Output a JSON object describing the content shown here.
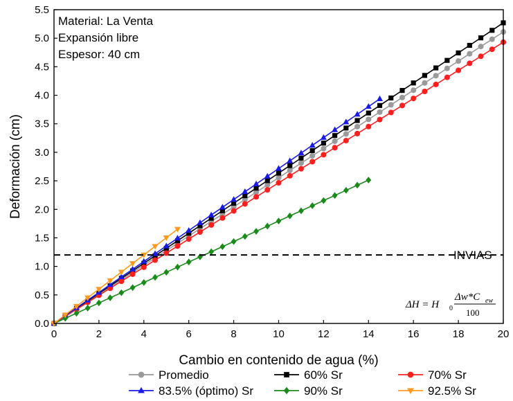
{
  "chart_data": {
    "type": "line",
    "xlabel": "Cambio en contenido de agua (%)",
    "ylabel": "Deformación (cm)",
    "xlim": [
      0,
      20
    ],
    "ylim": [
      0,
      5.5
    ],
    "x_ticks": [
      0,
      2,
      4,
      6,
      8,
      10,
      12,
      14,
      16,
      18,
      20
    ],
    "y_ticks": [
      0.0,
      0.5,
      1.0,
      1.5,
      2.0,
      2.5,
      3.0,
      3.5,
      4.0,
      4.5,
      5.0,
      5.5
    ],
    "grid": false,
    "annotations": [
      "Material: La Venta",
      "Expansión libre",
      "Espesor: 40 cm"
    ],
    "reference_line": {
      "y": 1.2,
      "label": "INVIAS",
      "style": "dashed"
    },
    "formula": {
      "lhs": "ΔH = H",
      "sub": "0",
      "numerator": "Δw*C",
      "num_sub": "ew",
      "denominator": "100"
    },
    "series": [
      {
        "name": "Promedio",
        "color": "#9a9a9a",
        "marker": "circle",
        "x_max": 20,
        "slope": 0.2555,
        "step": 0.5
      },
      {
        "name": "60% Sr",
        "color": "#000000",
        "marker": "square",
        "x_max": 20,
        "slope": 0.2635,
        "step": 0.5
      },
      {
        "name": "70% Sr",
        "color": "#ff1f1f",
        "marker": "circle",
        "x_max": 20,
        "slope": 0.2465,
        "step": 0.5
      },
      {
        "name": "83.5% (óptimo) Sr",
        "color": "#1a1ae6",
        "marker": "triangle-up",
        "x_max": 14.5,
        "slope": 0.2715,
        "step": 0.5
      },
      {
        "name": "90% Sr",
        "color": "#1a8a1a",
        "marker": "diamond",
        "x_max": 14,
        "slope": 0.1795,
        "step": 0.5
      },
      {
        "name": "92.5% Sr",
        "color": "#ff9a1f",
        "marker": "triangle-down",
        "x_max": 5.5,
        "slope": 0.3005,
        "step": 0.5
      }
    ]
  }
}
